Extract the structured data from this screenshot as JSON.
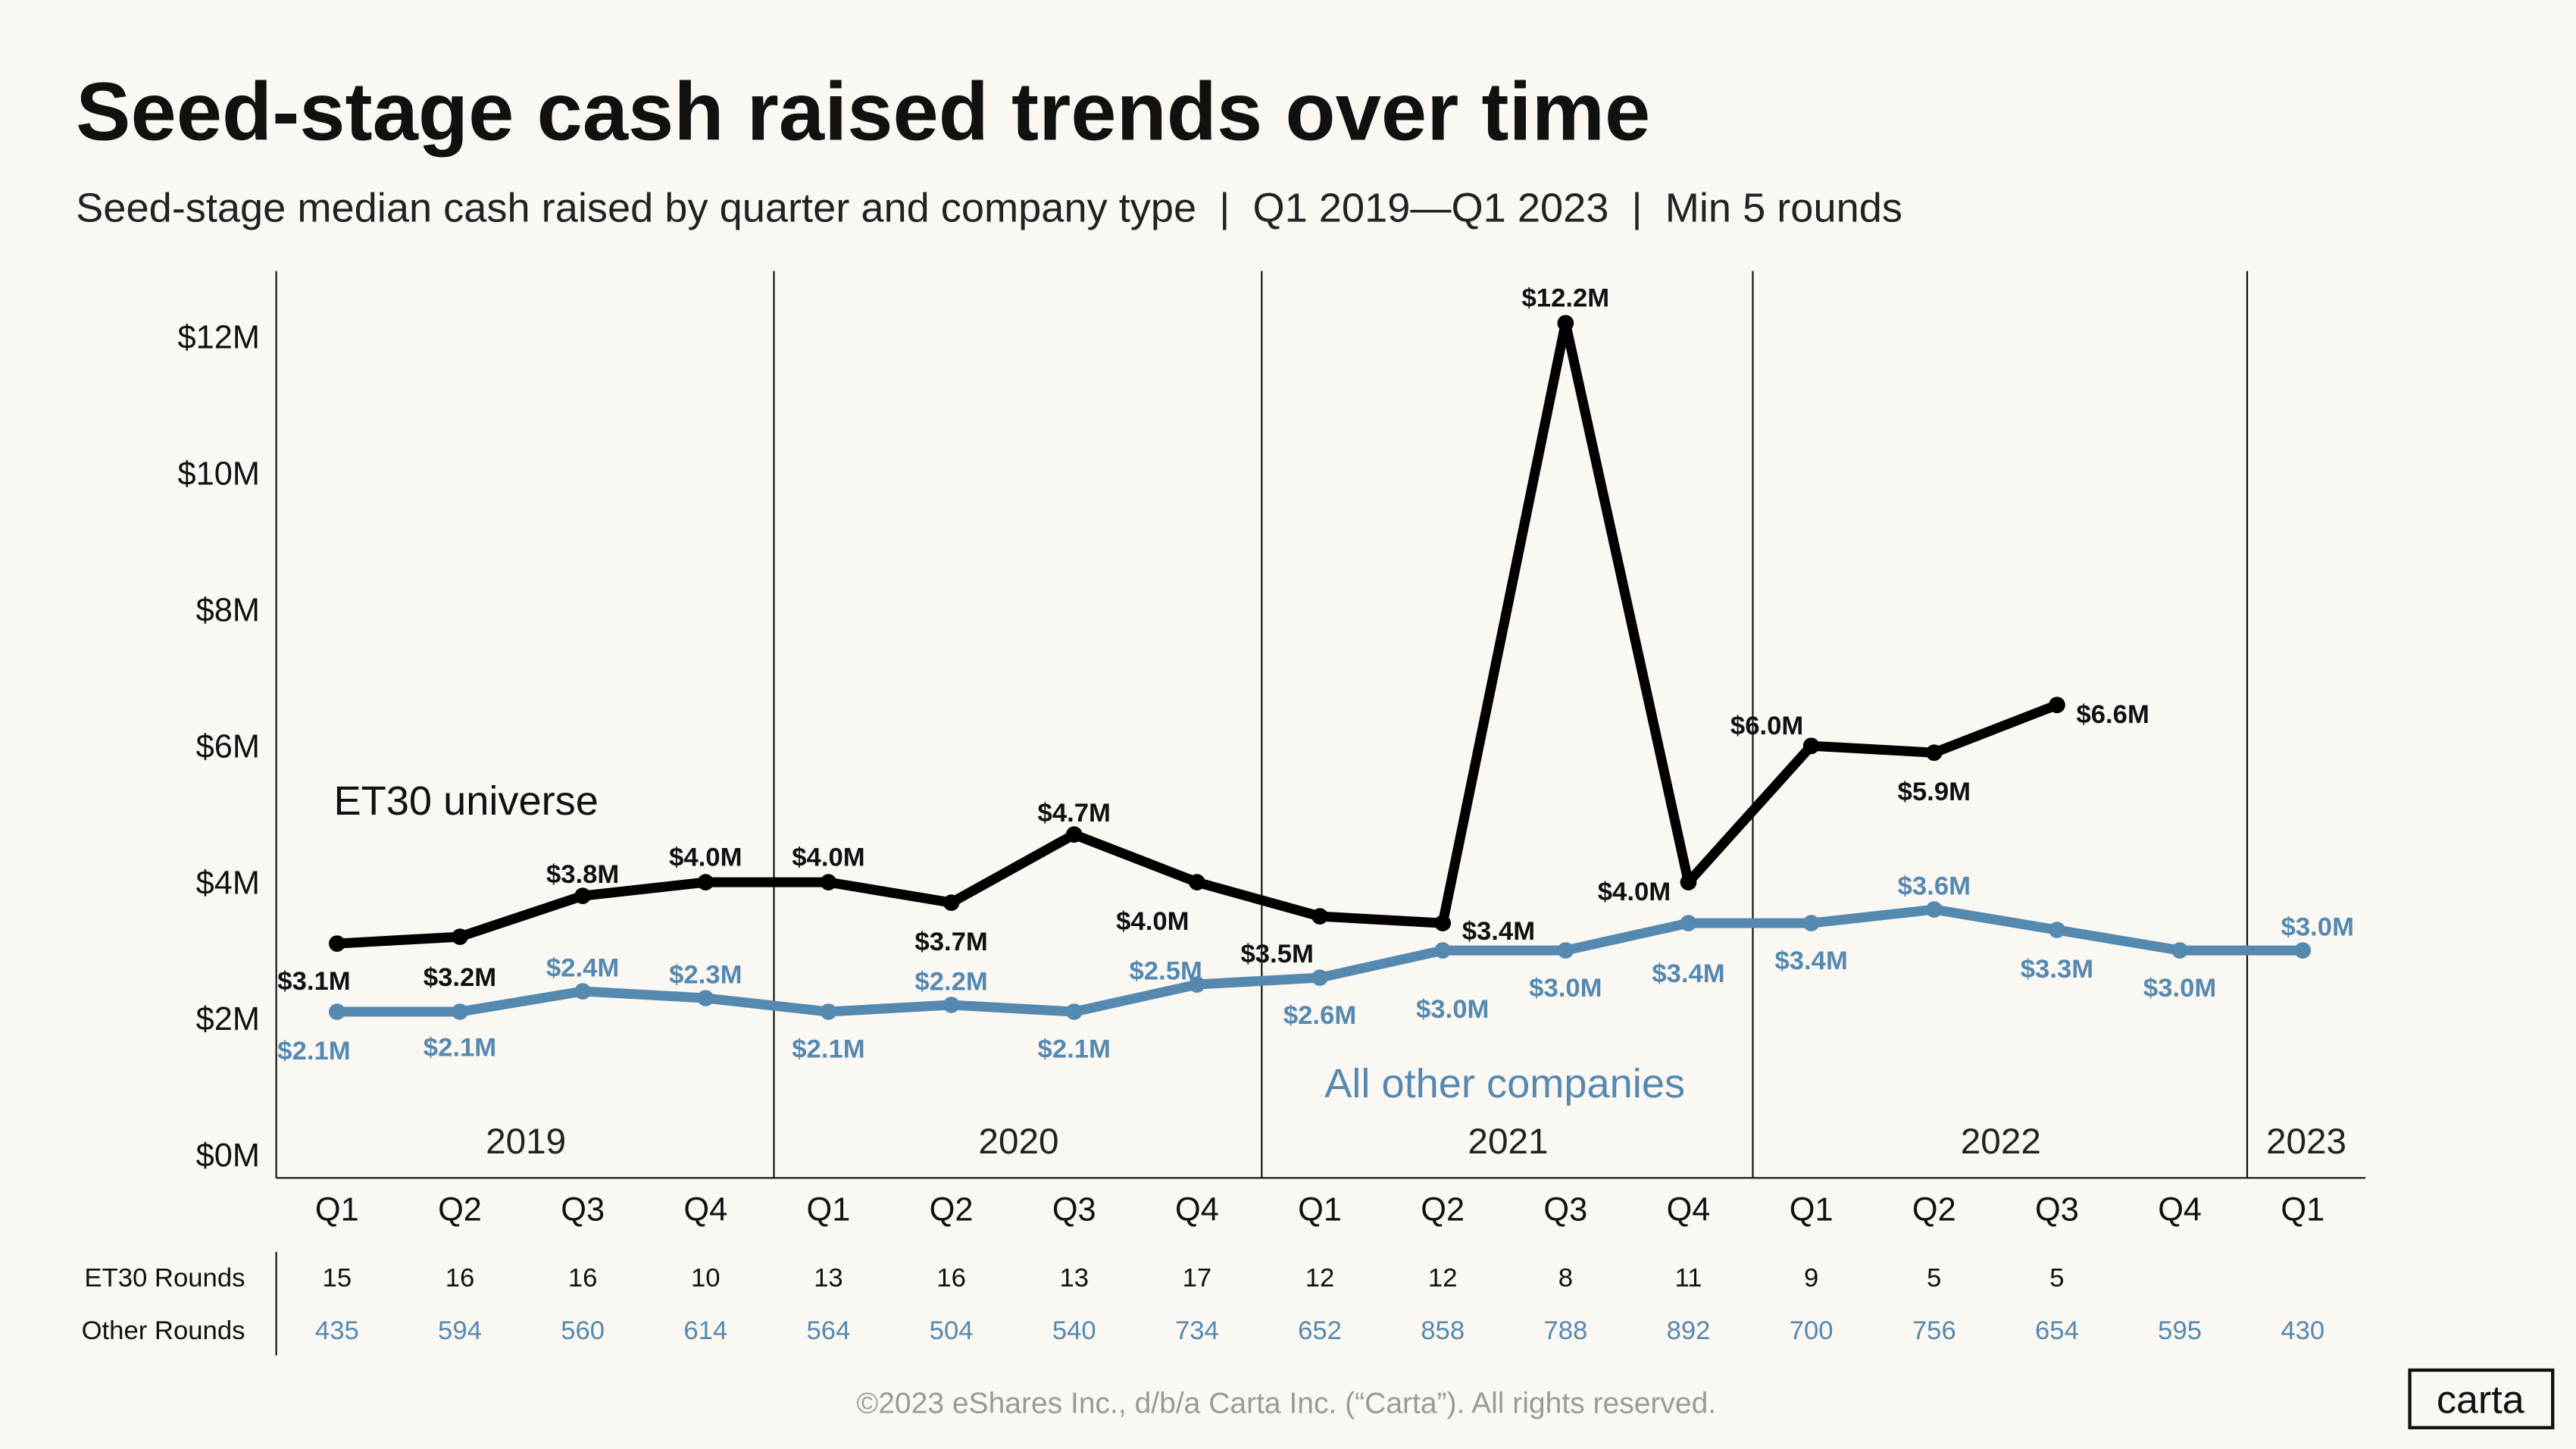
{
  "title": "Seed-stage cash raised trends over time",
  "subtitle": "Seed-stage median cash raised by quarter and company type  |  Q1 2019—Q1 2023  |  Min 5 rounds",
  "footer": "©2023 eShares Inc., d/b/a Carta Inc. (“Carta”). All rights reserved.",
  "logo_text": "carta",
  "chart_data": {
    "type": "line",
    "ylim": [
      0,
      12.5
    ],
    "ytick_values": [
      0,
      2,
      4,
      6,
      8,
      10,
      12
    ],
    "ytick_labels": [
      "$0M",
      "$2M",
      "$4M",
      "$6M",
      "$8M",
      "$10M",
      "$12M"
    ],
    "years": [
      "2019",
      "2020",
      "2021",
      "2022",
      "2023"
    ],
    "categories": [
      "Q1",
      "Q2",
      "Q3",
      "Q4",
      "Q1",
      "Q2",
      "Q3",
      "Q4",
      "Q1",
      "Q2",
      "Q3",
      "Q4",
      "Q1",
      "Q2",
      "Q3",
      "Q4",
      "Q1"
    ],
    "series": [
      {
        "name": "ET30 universe",
        "color": "#000000",
        "values": [
          3.1,
          3.2,
          3.8,
          4.0,
          4.0,
          3.7,
          4.7,
          4.0,
          3.5,
          3.4,
          12.2,
          4.0,
          6.0,
          5.9,
          6.6,
          null,
          null
        ],
        "labels": [
          "$3.1M",
          "$3.2M",
          "$3.8M",
          "$4.0M",
          "$4.0M",
          "$3.7M",
          "$4.7M",
          "$4.0M",
          "$3.5M",
          "$3.4M",
          "$12.2M",
          "$4.0M",
          "$6.0M",
          "$5.9M",
          "$6.6M",
          "",
          ""
        ]
      },
      {
        "name": "All other companies",
        "color": "#5589b0",
        "values": [
          2.1,
          2.1,
          2.4,
          2.3,
          2.1,
          2.2,
          2.1,
          2.5,
          2.6,
          3.0,
          3.0,
          3.4,
          3.4,
          3.6,
          3.3,
          3.0,
          3.0
        ],
        "labels": [
          "$2.1M",
          "$2.1M",
          "$2.4M",
          "$2.3M",
          "$2.1M",
          "$2.2M",
          "$2.1M",
          "$2.5M",
          "$2.6M",
          "$3.0M",
          "$3.0M",
          "$3.4M",
          "$3.4M",
          "$3.6M",
          "$3.3M",
          "$3.0M",
          "$3.0M"
        ]
      }
    ],
    "table": {
      "rows": [
        {
          "label": "ET30 Rounds",
          "values": [
            "15",
            "16",
            "16",
            "10",
            "13",
            "16",
            "13",
            "17",
            "12",
            "12",
            "8",
            "11",
            "9",
            "5",
            "5",
            "",
            ""
          ]
        },
        {
          "label": "Other Rounds",
          "values": [
            "435",
            "594",
            "560",
            "614",
            "564",
            "504",
            "540",
            "734",
            "652",
            "858",
            "788",
            "892",
            "700",
            "756",
            "654",
            "595",
            "430"
          ]
        }
      ]
    }
  }
}
